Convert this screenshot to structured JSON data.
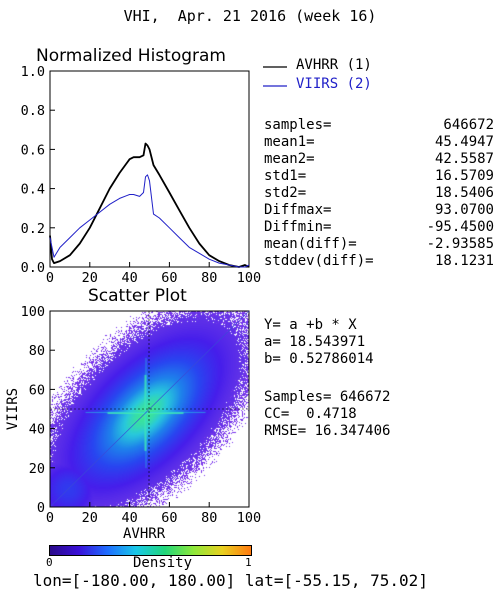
{
  "header": {
    "title": "VHI,  Apr. 21 2016 (week 16)"
  },
  "histogram": {
    "title": "Normalized Histogram",
    "x_ticks": [
      "0",
      "20",
      "40",
      "60",
      "80",
      "100"
    ],
    "y_ticks": [
      "0.0",
      "0.2",
      "0.4",
      "0.6",
      "0.8",
      "1.0"
    ]
  },
  "legend": {
    "items": [
      {
        "label": "AVHRR (1)",
        "color": "#000000"
      },
      {
        "label": "VIIRS (2)",
        "color": "#2020c8"
      }
    ]
  },
  "stats": [
    {
      "key": "samples=",
      "value": "646672"
    },
    {
      "key": "mean1=",
      "value": "45.4947"
    },
    {
      "key": "mean2=",
      "value": "42.5587"
    },
    {
      "key": "std1=",
      "value": "16.5709"
    },
    {
      "key": "std2=",
      "value": "18.5406"
    },
    {
      "key": "Diffmax=",
      "value": "93.0700"
    },
    {
      "key": "Diffmin=",
      "value": "-95.4500"
    },
    {
      "key": "mean(diff)=",
      "value": "-2.93585"
    },
    {
      "key": "stddev(diff)=",
      "value": "18.1231"
    }
  ],
  "scatter": {
    "title": "Scatter Plot",
    "xlabel": "AVHRR",
    "ylabel": "VIIRS",
    "x_ticks": [
      "0",
      "20",
      "40",
      "60",
      "80",
      "100"
    ],
    "y_ticks": [
      "0",
      "20",
      "40",
      "60",
      "80",
      "100"
    ],
    "regression": {
      "equation": "Y= a +b * X",
      "a_text": "a= 18.543971",
      "b_text": "b= 0.52786014"
    },
    "metrics": {
      "samples_text": "Samples= 646672",
      "cc_text": "CC=  0.4718",
      "rmse_text": "RMSE= 16.347406"
    }
  },
  "colorbar": {
    "label": "Density",
    "min": "0",
    "max": "1",
    "colors": [
      "#2a0a8a",
      "#3a10d8",
      "#1f6dff",
      "#19c8e8",
      "#20d67a",
      "#8ee83a",
      "#e8d020",
      "#ff7a10"
    ]
  },
  "footer": {
    "extent": "lon=[-180.00, 180.00] lat=[-55.15, 75.02]"
  },
  "chart_data": [
    {
      "type": "line",
      "title": "Normalized Histogram",
      "xlabel": "",
      "ylabel": "",
      "xlim": [
        0,
        100
      ],
      "ylim": [
        0,
        1
      ],
      "x": [
        0,
        1,
        2,
        5,
        10,
        15,
        20,
        25,
        30,
        35,
        40,
        42,
        45,
        47,
        48,
        49,
        50,
        52,
        55,
        60,
        65,
        70,
        75,
        80,
        85,
        90,
        95,
        98,
        100
      ],
      "series": [
        {
          "name": "AVHRR (1)",
          "color": "#000000",
          "values": [
            0.16,
            0.04,
            0.02,
            0.03,
            0.06,
            0.12,
            0.2,
            0.3,
            0.4,
            0.48,
            0.55,
            0.56,
            0.56,
            0.57,
            0.63,
            0.62,
            0.6,
            0.52,
            0.47,
            0.38,
            0.29,
            0.2,
            0.12,
            0.06,
            0.03,
            0.01,
            0.0,
            0.01,
            0.0
          ]
        },
        {
          "name": "VIIRS (2)",
          "color": "#2020c8",
          "values": [
            0.15,
            0.1,
            0.05,
            0.1,
            0.15,
            0.2,
            0.24,
            0.28,
            0.32,
            0.35,
            0.37,
            0.37,
            0.36,
            0.38,
            0.46,
            0.47,
            0.44,
            0.27,
            0.25,
            0.2,
            0.15,
            0.1,
            0.07,
            0.04,
            0.02,
            0.01,
            0.0,
            0.0,
            0.01
          ]
        }
      ]
    },
    {
      "type": "heatmap",
      "title": "Scatter Plot",
      "xlabel": "AVHRR",
      "ylabel": "VIIRS",
      "xlim": [
        0,
        100
      ],
      "ylim": [
        0,
        100
      ],
      "samples": 646672,
      "regression": {
        "a": 18.543971,
        "b": 0.52786014
      },
      "cc": 0.4718,
      "rmse": 16.347406,
      "density_peak": {
        "x": 48,
        "y": 48
      }
    }
  ]
}
